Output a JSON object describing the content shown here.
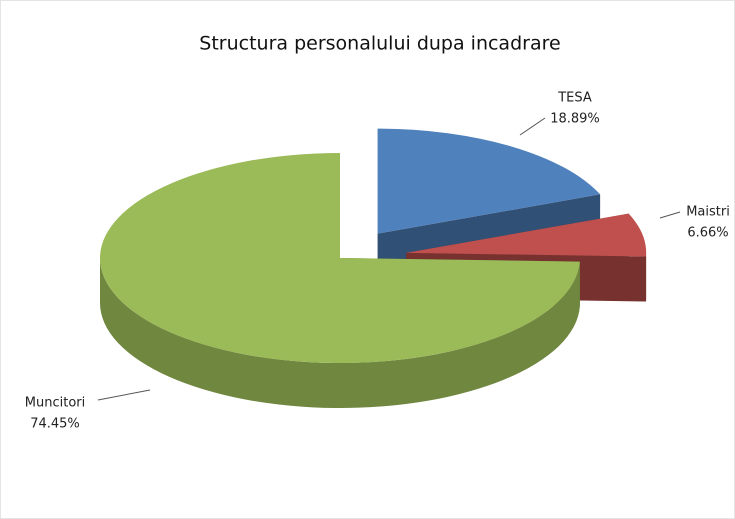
{
  "chart_data": {
    "type": "pie",
    "title": "Structura personalului dupa incadrare",
    "categories": [
      "TESA",
      "Maistri",
      "Muncitori"
    ],
    "values": [
      18.89,
      6.66,
      74.45
    ],
    "value_labels": [
      "18.89%",
      "6.66%",
      "74.45%"
    ],
    "colors": [
      "#4f81bd",
      "#c0504d",
      "#9bbb59"
    ]
  }
}
